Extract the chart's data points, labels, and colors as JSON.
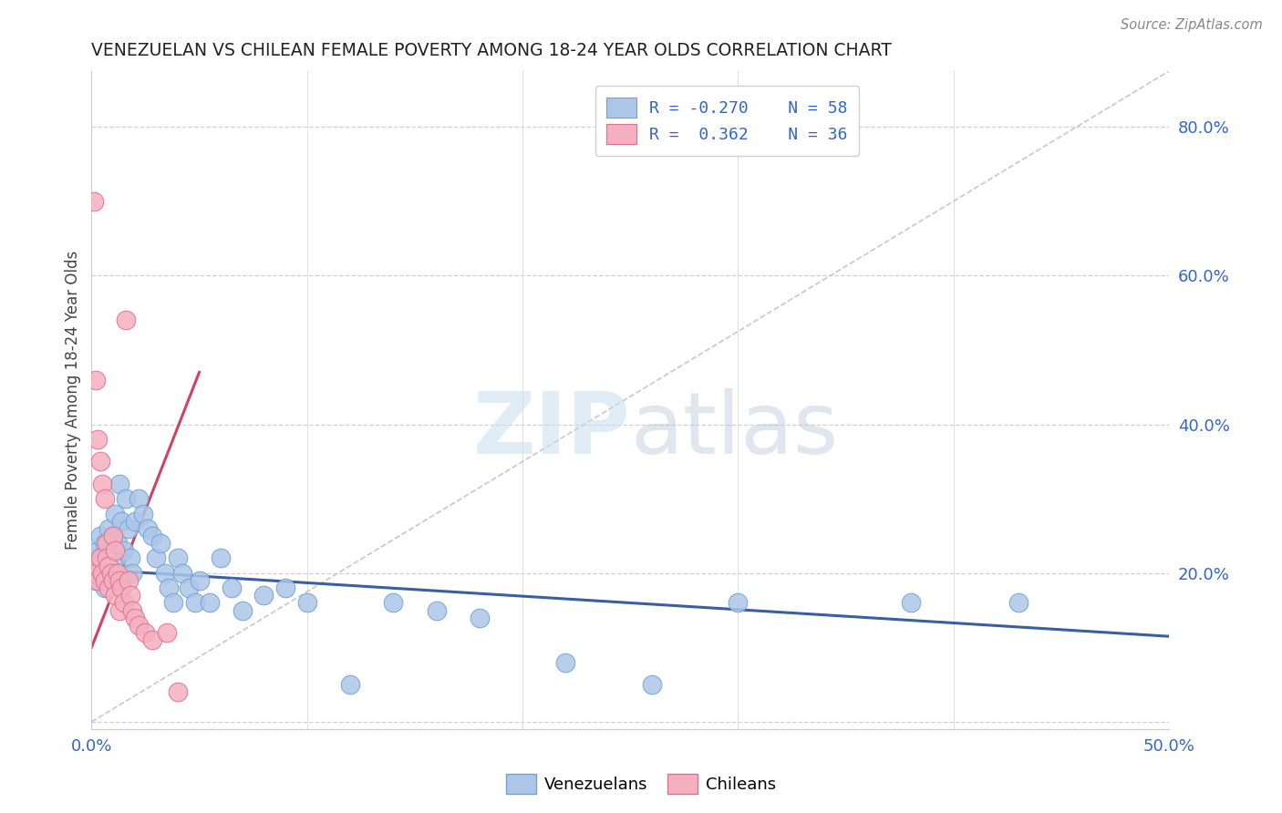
{
  "title": "VENEZUELAN VS CHILEAN FEMALE POVERTY AMONG 18-24 YEAR OLDS CORRELATION CHART",
  "source": "Source: ZipAtlas.com",
  "ylabel": "Female Poverty Among 18-24 Year Olds",
  "xlim": [
    0.0,
    0.5
  ],
  "ylim": [
    -0.01,
    0.875
  ],
  "xtick_positions": [
    0.0,
    0.1,
    0.2,
    0.3,
    0.4,
    0.5
  ],
  "xtick_labels": [
    "0.0%",
    "",
    "",
    "",
    "",
    "50.0%"
  ],
  "ytick_positions": [
    0.0,
    0.2,
    0.4,
    0.6,
    0.8
  ],
  "ytick_labels": [
    "",
    "20.0%",
    "40.0%",
    "60.0%",
    "80.0%"
  ],
  "venezuelan_color": "#adc6e8",
  "venezuelan_edge": "#6ea3d4",
  "chilean_color": "#f4b0c0",
  "chilean_edge": "#e07090",
  "ven_trend_color": "#3a5fa0",
  "chil_trend_color": "#d44060",
  "diag_color": "#c8c8c8",
  "venezuelan_R": -0.27,
  "venezuelan_N": 58,
  "chilean_R": 0.362,
  "chilean_N": 36,
  "watermark_zip": "ZIP",
  "watermark_atlas": "atlas",
  "background_color": "#ffffff",
  "ven_trend_x0": 0.0,
  "ven_trend_y0": 0.205,
  "ven_trend_x1": 0.5,
  "ven_trend_y1": 0.115,
  "chil_trend_x0": 0.0,
  "chil_trend_y0": 0.1,
  "chil_trend_x1": 0.05,
  "chil_trend_y1": 0.47,
  "ven_x": [
    0.001,
    0.002,
    0.002,
    0.003,
    0.003,
    0.004,
    0.004,
    0.005,
    0.005,
    0.006,
    0.006,
    0.007,
    0.008,
    0.008,
    0.009,
    0.01,
    0.01,
    0.011,
    0.012,
    0.012,
    0.013,
    0.014,
    0.015,
    0.016,
    0.017,
    0.018,
    0.019,
    0.02,
    0.022,
    0.024,
    0.026,
    0.028,
    0.03,
    0.032,
    0.034,
    0.036,
    0.038,
    0.04,
    0.042,
    0.045,
    0.048,
    0.05,
    0.055,
    0.06,
    0.065,
    0.07,
    0.08,
    0.09,
    0.1,
    0.12,
    0.14,
    0.16,
    0.18,
    0.22,
    0.26,
    0.3,
    0.38,
    0.43
  ],
  "ven_y": [
    0.2,
    0.22,
    0.19,
    0.21,
    0.23,
    0.2,
    0.25,
    0.22,
    0.19,
    0.24,
    0.18,
    0.21,
    0.2,
    0.26,
    0.23,
    0.25,
    0.22,
    0.28,
    0.2,
    0.24,
    0.32,
    0.27,
    0.23,
    0.3,
    0.26,
    0.22,
    0.2,
    0.27,
    0.3,
    0.28,
    0.26,
    0.25,
    0.22,
    0.24,
    0.2,
    0.18,
    0.16,
    0.22,
    0.2,
    0.18,
    0.16,
    0.19,
    0.16,
    0.22,
    0.18,
    0.15,
    0.17,
    0.18,
    0.16,
    0.05,
    0.16,
    0.15,
    0.14,
    0.08,
    0.05,
    0.16,
    0.16,
    0.16
  ],
  "chil_x": [
    0.001,
    0.001,
    0.002,
    0.002,
    0.003,
    0.003,
    0.004,
    0.004,
    0.005,
    0.005,
    0.006,
    0.006,
    0.007,
    0.007,
    0.008,
    0.008,
    0.009,
    0.01,
    0.01,
    0.011,
    0.011,
    0.012,
    0.013,
    0.013,
    0.014,
    0.015,
    0.016,
    0.017,
    0.018,
    0.019,
    0.02,
    0.022,
    0.025,
    0.028,
    0.035,
    0.04
  ],
  "chil_y": [
    0.7,
    0.21,
    0.46,
    0.2,
    0.38,
    0.19,
    0.35,
    0.22,
    0.32,
    0.2,
    0.3,
    0.19,
    0.24,
    0.22,
    0.21,
    0.18,
    0.2,
    0.25,
    0.19,
    0.23,
    0.17,
    0.2,
    0.19,
    0.15,
    0.18,
    0.16,
    0.54,
    0.19,
    0.17,
    0.15,
    0.14,
    0.13,
    0.12,
    0.11,
    0.12,
    0.04
  ]
}
